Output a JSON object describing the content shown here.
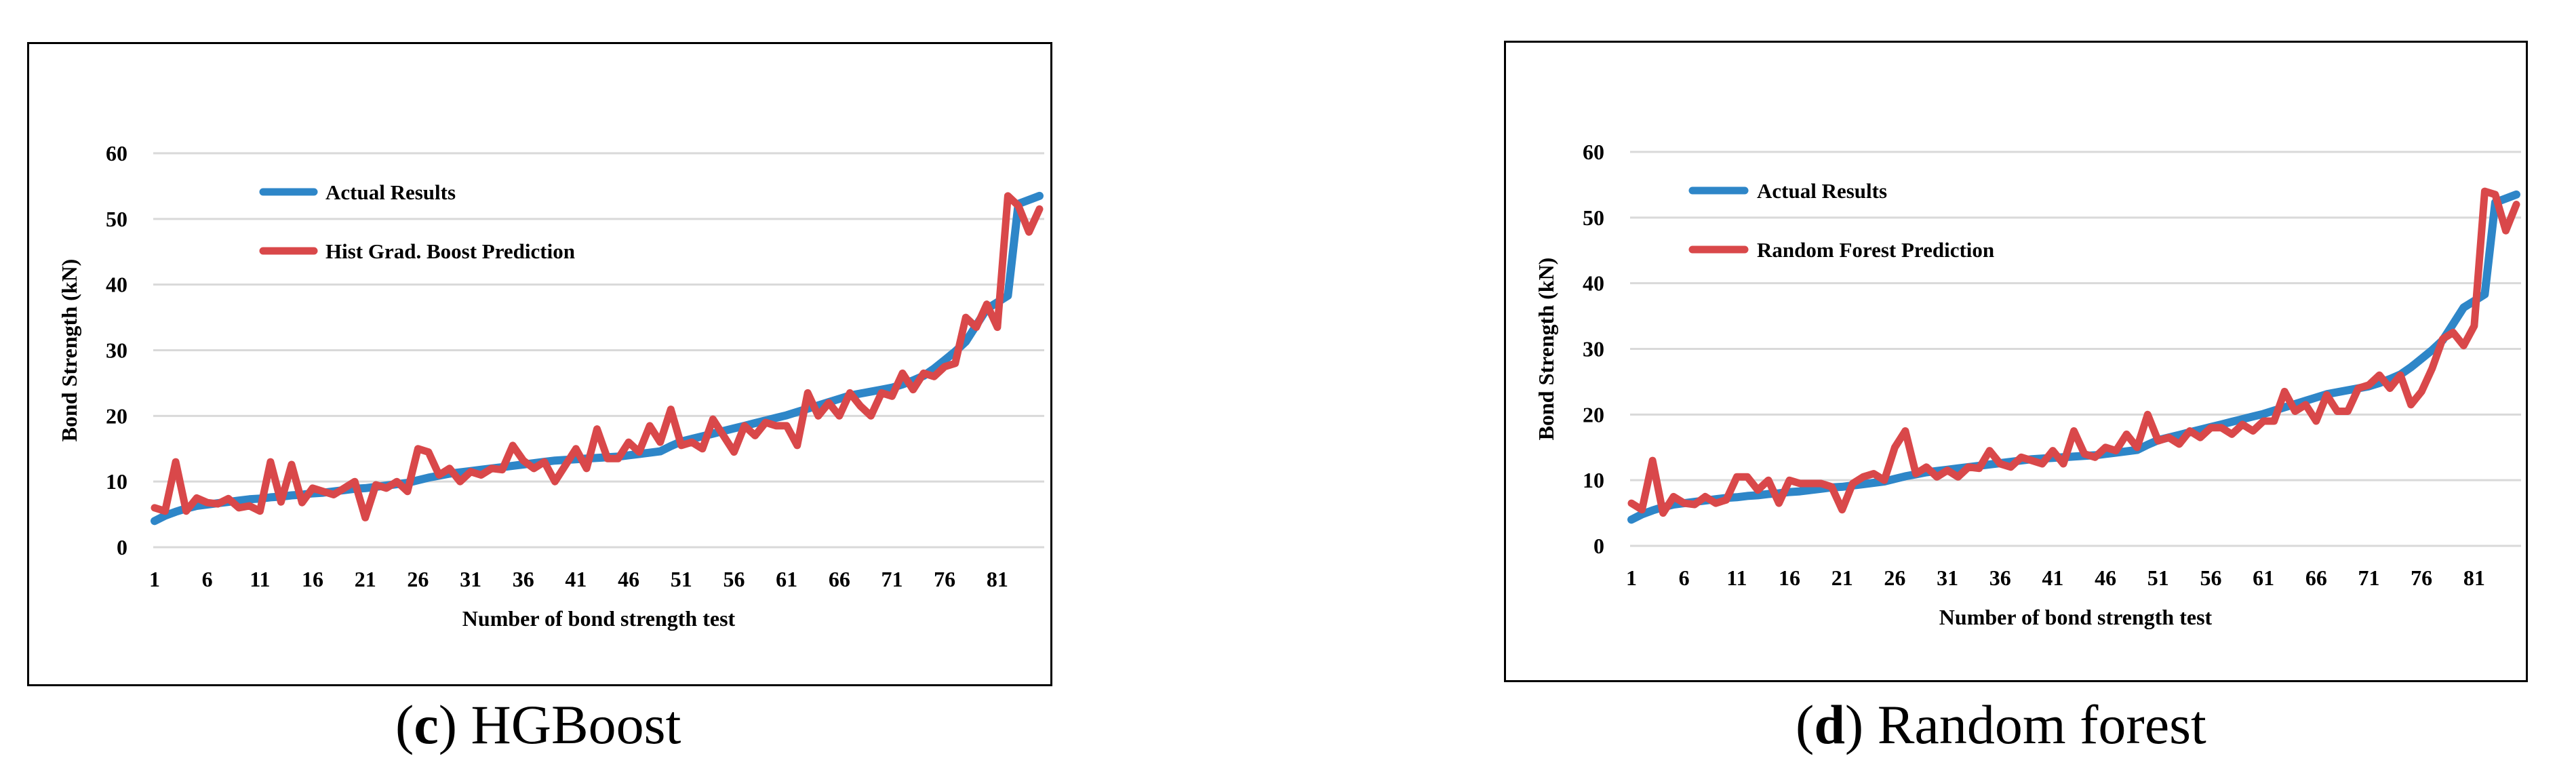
{
  "figures": [
    {
      "caption_letter": "c",
      "caption_text": "HGBoost"
    },
    {
      "caption_letter": "d",
      "caption_text": "Random forest"
    }
  ],
  "chart_data": [
    {
      "type": "line",
      "title": "",
      "xlabel": "Number of bond strength test",
      "ylabel": "Bond Strength (kN)",
      "ylim": [
        0,
        60
      ],
      "yticks": [
        0,
        10,
        20,
        30,
        40,
        50,
        60
      ],
      "xtick_labels": [
        "1",
        "6",
        "11",
        "16",
        "21",
        "26",
        "31",
        "36",
        "41",
        "46",
        "51",
        "56",
        "61",
        "66",
        "71",
        "76",
        "81"
      ],
      "grid": "horizontal",
      "legend_placement": "top-left",
      "colors": {
        "actual": "#2E86C8",
        "prediction": "#D9484A"
      },
      "x": [
        1,
        2,
        3,
        4,
        5,
        6,
        7,
        8,
        9,
        10,
        11,
        12,
        13,
        14,
        15,
        16,
        17,
        18,
        19,
        20,
        21,
        22,
        23,
        24,
        25,
        26,
        27,
        28,
        29,
        30,
        31,
        32,
        33,
        34,
        35,
        36,
        37,
        38,
        39,
        40,
        41,
        42,
        43,
        44,
        45,
        46,
        47,
        48,
        49,
        50,
        51,
        52,
        53,
        54,
        55,
        56,
        57,
        58,
        59,
        60,
        61,
        62,
        63,
        64,
        65,
        66,
        67,
        68,
        69,
        70,
        71,
        72,
        73,
        74,
        75,
        76,
        77,
        78,
        79,
        80,
        81,
        82,
        83,
        84,
        85
      ],
      "series": [
        {
          "name": "Actual Results",
          "values": [
            4,
            4.8,
            5.4,
            5.9,
            6.3,
            6.5,
            6.7,
            6.9,
            7.1,
            7.3,
            7.4,
            7.6,
            7.7,
            7.9,
            8,
            8.2,
            8.3,
            8.5,
            8.7,
            8.9,
            9,
            9.2,
            9.4,
            9.6,
            9.8,
            10.2,
            10.6,
            10.9,
            11.2,
            11.4,
            11.6,
            11.8,
            12,
            12.2,
            12.4,
            12.6,
            12.8,
            13,
            13.2,
            13.3,
            13.4,
            13.5,
            13.6,
            13.7,
            13.8,
            14,
            14.2,
            14.4,
            14.6,
            15.4,
            16.1,
            16.5,
            16.9,
            17.3,
            17.7,
            18.1,
            18.5,
            18.9,
            19.3,
            19.7,
            20.1,
            20.6,
            21.1,
            21.6,
            22.1,
            22.6,
            23.1,
            23.4,
            23.7,
            24,
            24.3,
            24.8,
            25.4,
            26.1,
            27.2,
            28.5,
            29.8,
            31.3,
            33.8,
            36.3,
            37.3,
            38.3,
            52.3,
            52.9,
            53.5
          ]
        },
        {
          "name": "Hist Grad. Boost Prediction",
          "values": [
            6,
            5.5,
            13,
            5.5,
            7.5,
            6.8,
            6.6,
            7.4,
            6,
            6.3,
            5.5,
            13,
            6.9,
            12.6,
            6.8,
            9,
            8.5,
            8,
            9,
            10,
            4.5,
            9.5,
            9,
            10,
            8.5,
            15,
            14.5,
            11,
            12,
            10,
            11.5,
            11,
            12,
            11.8,
            15.5,
            13.2,
            12,
            13,
            10,
            12.5,
            15,
            12,
            18,
            13.5,
            13.5,
            16,
            14.5,
            18.5,
            16,
            21,
            15.5,
            16,
            15,
            19.5,
            17,
            14.5,
            18.5,
            17,
            19,
            18.5,
            18.5,
            15.5,
            23.5,
            20,
            22,
            20,
            23.5,
            21.5,
            20,
            23.5,
            23,
            26.5,
            24,
            26.5,
            26,
            27.5,
            28,
            35,
            33.5,
            37,
            33.5,
            53.5,
            52,
            48,
            51.5
          ]
        }
      ]
    },
    {
      "type": "line",
      "title": "",
      "xlabel": "Number of bond strength test",
      "ylabel": "Bond Strength (kN)",
      "ylim": [
        0,
        60
      ],
      "yticks": [
        0,
        10,
        20,
        30,
        40,
        50,
        60
      ],
      "xtick_labels": [
        "1",
        "6",
        "11",
        "16",
        "21",
        "26",
        "31",
        "36",
        "41",
        "46",
        "51",
        "56",
        "61",
        "66",
        "71",
        "76",
        "81"
      ],
      "grid": "horizontal",
      "legend_placement": "top-left",
      "colors": {
        "actual": "#2E86C8",
        "prediction": "#D9484A"
      },
      "x": [
        1,
        2,
        3,
        4,
        5,
        6,
        7,
        8,
        9,
        10,
        11,
        12,
        13,
        14,
        15,
        16,
        17,
        18,
        19,
        20,
        21,
        22,
        23,
        24,
        25,
        26,
        27,
        28,
        29,
        30,
        31,
        32,
        33,
        34,
        35,
        36,
        37,
        38,
        39,
        40,
        41,
        42,
        43,
        44,
        45,
        46,
        47,
        48,
        49,
        50,
        51,
        52,
        53,
        54,
        55,
        56,
        57,
        58,
        59,
        60,
        61,
        62,
        63,
        64,
        65,
        66,
        67,
        68,
        69,
        70,
        71,
        72,
        73,
        74,
        75,
        76,
        77,
        78,
        79,
        80,
        81,
        82,
        83,
        84,
        85
      ],
      "series": [
        {
          "name": "Actual Results",
          "values": [
            4,
            4.8,
            5.4,
            5.9,
            6.3,
            6.5,
            6.7,
            6.9,
            7.1,
            7.3,
            7.4,
            7.6,
            7.7,
            7.9,
            8,
            8.2,
            8.3,
            8.5,
            8.7,
            8.9,
            9,
            9.2,
            9.4,
            9.6,
            9.8,
            10.2,
            10.6,
            10.9,
            11.2,
            11.4,
            11.6,
            11.8,
            12,
            12.2,
            12.4,
            12.6,
            12.8,
            13,
            13.2,
            13.3,
            13.4,
            13.5,
            13.6,
            13.7,
            13.8,
            14,
            14.2,
            14.4,
            14.6,
            15.4,
            16.1,
            16.5,
            16.9,
            17.3,
            17.7,
            18.1,
            18.5,
            18.9,
            19.3,
            19.7,
            20.1,
            20.6,
            21.1,
            21.6,
            22.1,
            22.6,
            23.1,
            23.4,
            23.7,
            24,
            24.3,
            24.8,
            25.4,
            26.1,
            27.2,
            28.5,
            29.8,
            31.3,
            33.8,
            36.3,
            37.3,
            38.3,
            52.3,
            52.9,
            53.5
          ]
        },
        {
          "name": "Random Forest Prediction",
          "values": [
            6.5,
            5.5,
            13,
            5,
            7.5,
            6.5,
            6.3,
            7.5,
            6.5,
            7,
            10.5,
            10.5,
            8.5,
            10,
            6.5,
            10,
            9.5,
            9.5,
            9.5,
            9,
            5.5,
            9.5,
            10.5,
            11,
            10,
            15,
            17.5,
            11,
            12,
            10.5,
            11.5,
            10.5,
            12,
            11.8,
            14.5,
            12.5,
            12,
            13.5,
            13,
            12.5,
            14.5,
            12.5,
            17.5,
            14,
            13.5,
            15,
            14.5,
            17,
            15,
            20,
            16,
            16.5,
            15.5,
            17.5,
            16.5,
            18,
            18,
            17,
            18.5,
            17.5,
            19,
            19,
            23.5,
            20.5,
            21.5,
            19,
            23,
            20.5,
            20.5,
            24,
            24.5,
            26,
            24,
            26,
            21.5,
            23.5,
            27,
            31.5,
            32.5,
            30.5,
            33.5,
            54,
            53.5,
            48,
            52
          ]
        }
      ]
    }
  ]
}
